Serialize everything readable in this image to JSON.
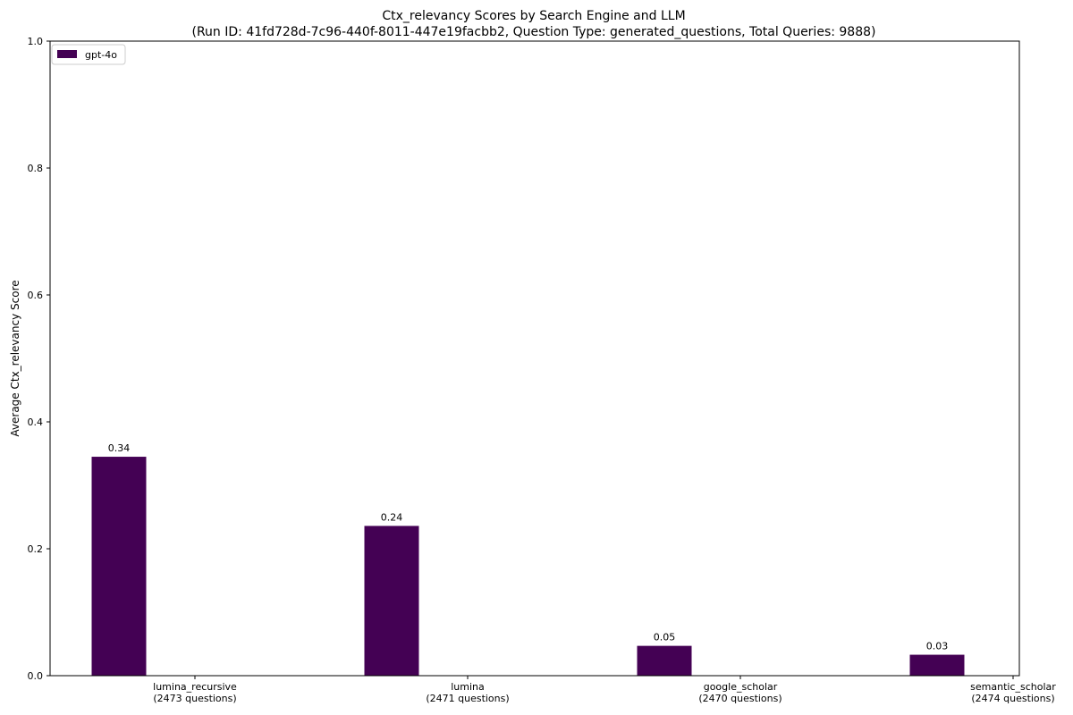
{
  "chart_data": {
    "type": "bar",
    "title": "Ctx_relevancy Scores by Search Engine and LLM",
    "subtitle": "(Run ID: 41fd728d-7c96-440f-8011-447e19facbb2, Question Type: generated_questions, Total Queries: 9888)",
    "xlabel": "",
    "ylabel": "Average Ctx_relevancy Score",
    "ylim": [
      0,
      1.0
    ],
    "yticks": [
      "0.0",
      "0.2",
      "0.4",
      "0.6",
      "0.8",
      "1.0"
    ],
    "categories": [
      [
        "lumina_recursive",
        "(2473 questions)"
      ],
      [
        "lumina",
        "(2471 questions)"
      ],
      [
        "google_scholar",
        "(2470 questions)"
      ],
      [
        "semantic_scholar",
        "(2474 questions)"
      ]
    ],
    "series": [
      {
        "name": "gpt-4o",
        "color": "#440154",
        "values": [
          0.345,
          0.236,
          0.047,
          0.033
        ],
        "labels": [
          "0.34",
          "0.24",
          "0.05",
          "0.03"
        ]
      }
    ],
    "legend": "top-left",
    "grid": false
  }
}
